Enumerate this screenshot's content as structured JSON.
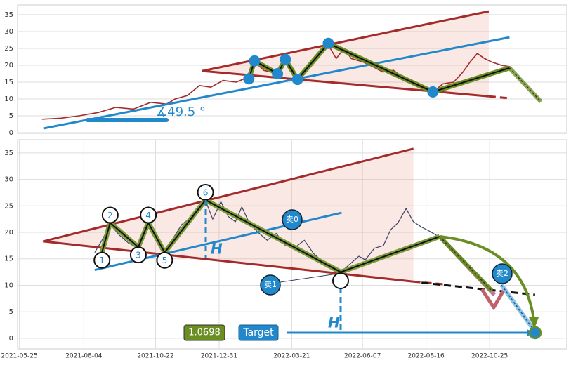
{
  "chart_data": [
    {
      "type": "line",
      "xlim": [
        "2020-10-11",
        "2022-11-17"
      ],
      "ylim": [
        -0.2,
        37.9
      ],
      "yticks": [
        0,
        5,
        10,
        15,
        20,
        25,
        30,
        35
      ],
      "grid": true,
      "series": [
        {
          "color": "#a52a2a",
          "x": [
            "2020-11-14",
            "2020-12-10",
            "2021-01-05",
            "2021-02-01",
            "2021-02-25",
            "2021-03-22",
            "2021-04-15",
            "2021-05-07",
            "2021-05-19",
            "2021-06-05",
            "2021-06-22",
            "2021-07-08",
            "2021-07-25",
            "2021-08-12",
            "2021-08-30",
            "2021-09-07",
            "2021-09-20",
            "2021-10-09",
            "2021-10-20",
            "2021-11-06",
            "2021-11-20",
            "2021-12-05",
            "2021-12-19",
            "2021-12-30",
            "2022-01-10",
            "2022-01-20",
            "2022-02-05",
            "2022-02-20",
            "2022-03-05",
            "2022-03-20",
            "2022-04-05",
            "2022-04-20",
            "2022-05-14",
            "2022-05-28",
            "2022-06-12",
            "2022-06-25",
            "2022-07-05",
            "2022-07-15",
            "2022-07-25",
            "2022-08-04",
            "2022-08-18",
            "2022-08-31"
          ],
          "values": [
            4.0,
            4.3,
            5.0,
            6.0,
            7.5,
            7.0,
            9.0,
            8.5,
            10.0,
            11.0,
            14.0,
            13.5,
            15.5,
            15.0,
            16.5,
            21.0,
            18.5,
            17.5,
            21.5,
            16.0,
            19.5,
            23.0,
            26.0,
            22.0,
            25.0,
            22.0,
            21.0,
            19.5,
            18.0,
            18.5,
            16.0,
            14.0,
            12.0,
            14.5,
            15.0,
            18.0,
            21.0,
            23.5,
            22.0,
            21.0,
            20.0,
            19.5
          ]
        }
      ],
      "triangle": {
        "color": "#a52a2a",
        "x": [
          "2021-06-26",
          "2022-07-31"
        ],
        "upper": [
          18.3,
          36.0
        ],
        "lower": [
          18.3,
          10.8
        ]
      },
      "lines": [
        {
          "color": "#2288cc",
          "style": "solid",
          "x": [
            "2020-11-16",
            "2022-08-29"
          ],
          "values": [
            1.25,
            28.3
          ]
        },
        {
          "color": "#a52a2a",
          "style": "dashed",
          "x": [
            "2022-07-31",
            "2022-08-29"
          ],
          "values": [
            10.8,
            10.2
          ]
        },
        {
          "color": "#2288cc",
          "style": "thick",
          "x": [
            "2021-01-17",
            "2021-05-07"
          ],
          "values": [
            3.75,
            3.75
          ]
        },
        {
          "color": "#6b8e23",
          "style": "projection",
          "x": [
            "2022-08-29",
            "2022-10-12"
          ],
          "values": [
            19.2,
            9.2
          ]
        }
      ],
      "zigzag": {
        "color": "#6b8e23",
        "x": [
          "2021-08-30",
          "2021-09-07",
          "2021-10-09",
          "2021-10-20",
          "2021-11-06",
          "2021-12-19",
          "2022-05-14",
          "2022-08-29"
        ],
        "values": [
          16.0,
          21.3,
          17.5,
          21.7,
          15.8,
          26.5,
          12.1,
          19.2
        ]
      },
      "pivots": {
        "color": "#2288cc",
        "x": [
          "2021-08-30",
          "2021-09-07",
          "2021-10-09",
          "2021-10-20",
          "2021-11-06",
          "2021-12-19",
          "2022-05-14"
        ],
        "values": [
          16.0,
          21.3,
          17.5,
          21.7,
          15.8,
          26.5,
          12.1
        ]
      },
      "angle_label": "∡49.5 °"
    },
    {
      "type": "line",
      "xlim": [
        "2021-05-23",
        "2023-01-18"
      ],
      "ylim": [
        -2,
        37.5
      ],
      "yticks": [
        0,
        5,
        10,
        15,
        20,
        25,
        30,
        35
      ],
      "grid": true,
      "xticks": [
        "2021-05-25",
        "2021-08-04",
        "2021-10-22",
        "2021-12-31",
        "2022-03-21",
        "2022-06-07",
        "2022-08-16",
        "2022-10-25"
      ],
      "series": [
        {
          "color": "#3b4260",
          "x": [
            "2021-08-16",
            "2021-08-24",
            "2021-09-02",
            "2021-09-12",
            "2021-09-22",
            "2021-10-03",
            "2021-10-09",
            "2021-10-14",
            "2021-10-22",
            "2021-11-01",
            "2021-11-10",
            "2021-11-20",
            "2021-11-30",
            "2021-12-08",
            "2021-12-16",
            "2021-12-24",
            "2022-01-02",
            "2022-01-10",
            "2022-01-18",
            "2022-01-25",
            "2022-02-03",
            "2022-02-12",
            "2022-02-22",
            "2022-03-04",
            "2022-03-14",
            "2022-03-25",
            "2022-04-04",
            "2022-04-14",
            "2022-04-24",
            "2022-05-04",
            "2022-05-14",
            "2022-05-24",
            "2022-06-03",
            "2022-06-10",
            "2022-06-20",
            "2022-06-30",
            "2022-07-08",
            "2022-07-16",
            "2022-07-25",
            "2022-08-02",
            "2022-08-11",
            "2022-08-20",
            "2022-08-30"
          ],
          "values": [
            16.2,
            18.5,
            21.5,
            19.5,
            18.0,
            17.0,
            19.5,
            21.5,
            18.5,
            16.2,
            18.8,
            21.5,
            22.8,
            24.5,
            26.0,
            22.5,
            25.8,
            23.0,
            22.0,
            24.8,
            21.5,
            20.0,
            18.5,
            19.8,
            17.5,
            17.2,
            18.5,
            16.0,
            14.5,
            13.5,
            12.5,
            14.0,
            15.5,
            14.8,
            17.0,
            17.5,
            20.5,
            21.8,
            24.5,
            22.0,
            21.0,
            20.2,
            19.2
          ]
        }
      ],
      "triangle": {
        "color": "#a52a2a",
        "x": [
          "2021-06-20",
          "2022-08-02"
        ],
        "upper": [
          18.3,
          35.8
        ],
        "lower": [
          18.3,
          10.7
        ]
      },
      "lines": [
        {
          "color": "#2288cc",
          "style": "solid",
          "x": [
            "2021-08-16",
            "2022-05-15"
          ],
          "values": [
            12.9,
            23.7
          ]
        },
        {
          "color": "#a52a2a",
          "style": "dashed",
          "x": [
            "2022-08-02",
            "2022-09-05"
          ],
          "values": [
            10.7,
            10.2
          ]
        },
        {
          "color": "#111111",
          "style": "dashed",
          "x": [
            "2022-08-11",
            "2022-12-14"
          ],
          "values": [
            10.5,
            8.2
          ]
        }
      ],
      "zigzag": {
        "color": "#7a9a3a",
        "x": [
          "2021-08-24",
          "2021-09-02",
          "2021-10-03",
          "2021-10-14",
          "2021-11-01",
          "2021-12-16",
          "2022-05-14",
          "2022-08-31"
        ],
        "values": [
          16.2,
          21.8,
          17.2,
          21.8,
          16.2,
          26.1,
          12.5,
          19.2
        ],
        "labels": [
          "1",
          "2",
          "3",
          "4",
          "5",
          "6",
          null,
          null
        ]
      },
      "annotations": {
        "h": "H",
        "sell0": "卖0",
        "sell1": "卖1",
        "sell2": "卖2",
        "target": "Target",
        "target_value": 1.0698
      }
    }
  ]
}
